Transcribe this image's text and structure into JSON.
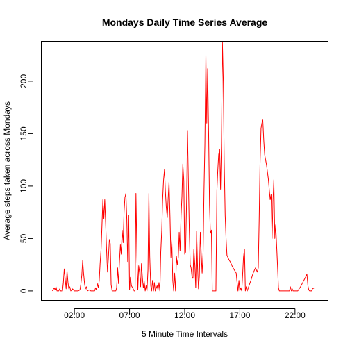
{
  "chart_data": {
    "type": "line",
    "title": "Mondays Daily Time Series Average",
    "xlabel": "5 Minute Time Intervals",
    "ylabel": "Average steps taken across Mondays",
    "x_unit": "hours",
    "xlim": [
      -1.0,
      25.0
    ],
    "ylim": [
      -9,
      238
    ],
    "x_ticks": [
      {
        "value": 2,
        "label": "02:00"
      },
      {
        "value": 7,
        "label": "07:00"
      },
      {
        "value": 12,
        "label": "12:00"
      },
      {
        "value": 17,
        "label": "17:00"
      },
      {
        "value": 22,
        "label": "22:00"
      }
    ],
    "y_ticks": [
      0,
      50,
      100,
      150,
      200
    ],
    "grid": false,
    "series": [
      {
        "color": "#ff0000",
        "points": [
          [
            0,
            0
          ],
          [
            0.17,
            3
          ],
          [
            0.25,
            1
          ],
          [
            0.33,
            4
          ],
          [
            0.42,
            0
          ],
          [
            0.58,
            0
          ],
          [
            0.67,
            2
          ],
          [
            0.75,
            0
          ],
          [
            0.92,
            0
          ],
          [
            1.0,
            8
          ],
          [
            1.08,
            21
          ],
          [
            1.17,
            11
          ],
          [
            1.25,
            2
          ],
          [
            1.33,
            19
          ],
          [
            1.42,
            8
          ],
          [
            1.5,
            2
          ],
          [
            1.58,
            4
          ],
          [
            1.67,
            0
          ],
          [
            1.83,
            2
          ],
          [
            2.0,
            0
          ],
          [
            2.17,
            0
          ],
          [
            2.33,
            0
          ],
          [
            2.5,
            1
          ],
          [
            2.58,
            6
          ],
          [
            2.67,
            15
          ],
          [
            2.75,
            29
          ],
          [
            2.83,
            17
          ],
          [
            2.92,
            7
          ],
          [
            3.0,
            2
          ],
          [
            3.08,
            4
          ],
          [
            3.17,
            0
          ],
          [
            3.33,
            1
          ],
          [
            3.5,
            0
          ],
          [
            3.67,
            0
          ],
          [
            3.83,
            0
          ],
          [
            3.92,
            3
          ],
          [
            4.0,
            1
          ],
          [
            4.08,
            7
          ],
          [
            4.17,
            3
          ],
          [
            4.25,
            10
          ],
          [
            4.33,
            26
          ],
          [
            4.42,
            40
          ],
          [
            4.5,
            63
          ],
          [
            4.58,
            87
          ],
          [
            4.67,
            69
          ],
          [
            4.75,
            87
          ],
          [
            4.83,
            65
          ],
          [
            4.92,
            38
          ],
          [
            5.0,
            18
          ],
          [
            5.08,
            31
          ],
          [
            5.17,
            49
          ],
          [
            5.25,
            45
          ],
          [
            5.33,
            6
          ],
          [
            5.42,
            0
          ],
          [
            5.58,
            0
          ],
          [
            5.75,
            0
          ],
          [
            5.83,
            3
          ],
          [
            5.92,
            22
          ],
          [
            6.0,
            7
          ],
          [
            6.08,
            27
          ],
          [
            6.17,
            44
          ],
          [
            6.25,
            35
          ],
          [
            6.33,
            58
          ],
          [
            6.42,
            46
          ],
          [
            6.5,
            75
          ],
          [
            6.58,
            89
          ],
          [
            6.67,
            93
          ],
          [
            6.75,
            68
          ],
          [
            6.83,
            28
          ],
          [
            6.92,
            72
          ],
          [
            7.0,
            1
          ],
          [
            7.08,
            13
          ],
          [
            7.17,
            5
          ],
          [
            7.33,
            2
          ],
          [
            7.42,
            0
          ],
          [
            7.5,
            0
          ],
          [
            7.58,
            93
          ],
          [
            7.67,
            33
          ],
          [
            7.75,
            1
          ],
          [
            7.83,
            24
          ],
          [
            7.92,
            17
          ],
          [
            8.0,
            4
          ],
          [
            8.08,
            26
          ],
          [
            8.17,
            12
          ],
          [
            8.25,
            3
          ],
          [
            8.33,
            9
          ],
          [
            8.42,
            0
          ],
          [
            8.5,
            5
          ],
          [
            8.58,
            0
          ],
          [
            8.67,
            20
          ],
          [
            8.75,
            93
          ],
          [
            8.83,
            33
          ],
          [
            8.92,
            5
          ],
          [
            9.0,
            0
          ],
          [
            9.08,
            10
          ],
          [
            9.17,
            0
          ],
          [
            9.25,
            8
          ],
          [
            9.33,
            0
          ],
          [
            9.5,
            5
          ],
          [
            9.58,
            1
          ],
          [
            9.67,
            8
          ],
          [
            9.75,
            0
          ],
          [
            9.83,
            37
          ],
          [
            9.92,
            58
          ],
          [
            10.0,
            87
          ],
          [
            10.08,
            105
          ],
          [
            10.17,
            116
          ],
          [
            10.25,
            95
          ],
          [
            10.33,
            80
          ],
          [
            10.42,
            70
          ],
          [
            10.5,
            88
          ],
          [
            10.58,
            104
          ],
          [
            10.67,
            70
          ],
          [
            10.75,
            32
          ],
          [
            10.83,
            48
          ],
          [
            10.92,
            10
          ],
          [
            11.0,
            0
          ],
          [
            11.08,
            17
          ],
          [
            11.17,
            0
          ],
          [
            11.25,
            33
          ],
          [
            11.33,
            25
          ],
          [
            11.42,
            32
          ],
          [
            11.5,
            56
          ],
          [
            11.58,
            38
          ],
          [
            11.67,
            72
          ],
          [
            11.75,
            90
          ],
          [
            11.83,
            121
          ],
          [
            11.92,
            105
          ],
          [
            12.0,
            35
          ],
          [
            12.08,
            37
          ],
          [
            12.17,
            85
          ],
          [
            12.25,
            153
          ],
          [
            12.33,
            108
          ],
          [
            12.42,
            57
          ],
          [
            12.5,
            25
          ],
          [
            12.58,
            22
          ],
          [
            12.67,
            13
          ],
          [
            12.75,
            12
          ],
          [
            12.83,
            40
          ],
          [
            12.92,
            25
          ],
          [
            13.0,
            3
          ],
          [
            13.08,
            57
          ],
          [
            13.17,
            22
          ],
          [
            13.25,
            2
          ],
          [
            13.33,
            14
          ],
          [
            13.42,
            56
          ],
          [
            13.5,
            35
          ],
          [
            13.58,
            17
          ],
          [
            13.67,
            37
          ],
          [
            13.75,
            96
          ],
          [
            13.83,
            140
          ],
          [
            13.92,
            225
          ],
          [
            14.0,
            160
          ],
          [
            14.08,
            212
          ],
          [
            14.17,
            150
          ],
          [
            14.25,
            82
          ],
          [
            14.33,
            55
          ],
          [
            14.42,
            58
          ],
          [
            14.5,
            0
          ],
          [
            14.67,
            0
          ],
          [
            14.83,
            0
          ],
          [
            14.92,
            96
          ],
          [
            15.0,
            115
          ],
          [
            15.08,
            130
          ],
          [
            15.17,
            135
          ],
          [
            15.25,
            97
          ],
          [
            15.33,
            141
          ],
          [
            15.42,
            237
          ],
          [
            15.5,
            200
          ],
          [
            15.58,
            125
          ],
          [
            15.67,
            72
          ],
          [
            15.75,
            50
          ],
          [
            15.83,
            34
          ],
          [
            16.0,
            30
          ],
          [
            16.17,
            27
          ],
          [
            16.33,
            23
          ],
          [
            16.5,
            20
          ],
          [
            16.67,
            17
          ],
          [
            16.75,
            8
          ],
          [
            16.83,
            0
          ],
          [
            16.92,
            10
          ],
          [
            17.0,
            0
          ],
          [
            17.08,
            3
          ],
          [
            17.17,
            0
          ],
          [
            17.25,
            15
          ],
          [
            17.33,
            32
          ],
          [
            17.42,
            40
          ],
          [
            17.5,
            0
          ],
          [
            17.58,
            4
          ],
          [
            17.67,
            0
          ],
          [
            17.83,
            5
          ],
          [
            18.0,
            10
          ],
          [
            18.17,
            16
          ],
          [
            18.33,
            20
          ],
          [
            18.42,
            22
          ],
          [
            18.5,
            20
          ],
          [
            18.58,
            18
          ],
          [
            18.67,
            22
          ],
          [
            18.75,
            67
          ],
          [
            18.83,
            121
          ],
          [
            18.92,
            155
          ],
          [
            19.0,
            160
          ],
          [
            19.08,
            163
          ],
          [
            19.17,
            143
          ],
          [
            19.25,
            130
          ],
          [
            19.42,
            120
          ],
          [
            19.58,
            107
          ],
          [
            19.67,
            96
          ],
          [
            19.75,
            87
          ],
          [
            19.83,
            92
          ],
          [
            19.92,
            50
          ],
          [
            20.0,
            85
          ],
          [
            20.08,
            106
          ],
          [
            20.17,
            50
          ],
          [
            20.25,
            63
          ],
          [
            20.33,
            44
          ],
          [
            20.42,
            23
          ],
          [
            20.5,
            3
          ],
          [
            20.58,
            0
          ],
          [
            20.75,
            0
          ],
          [
            21.0,
            0
          ],
          [
            21.25,
            0
          ],
          [
            21.5,
            0
          ],
          [
            21.58,
            4
          ],
          [
            21.67,
            0
          ],
          [
            21.75,
            2
          ],
          [
            21.83,
            0
          ],
          [
            22.0,
            0
          ],
          [
            22.25,
            0
          ],
          [
            22.5,
            4
          ],
          [
            22.75,
            9
          ],
          [
            23.0,
            14
          ],
          [
            23.08,
            16
          ],
          [
            23.17,
            5
          ],
          [
            23.25,
            1
          ],
          [
            23.33,
            0
          ],
          [
            23.5,
            0
          ],
          [
            23.58,
            2
          ],
          [
            23.75,
            3
          ]
        ]
      }
    ]
  }
}
